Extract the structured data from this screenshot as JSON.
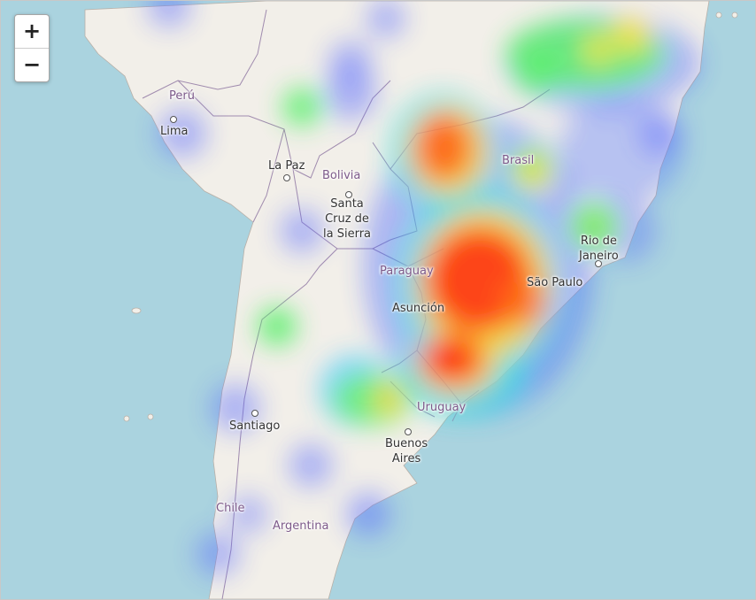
{
  "map": {
    "zoom_in_label": "+",
    "zoom_out_label": "−",
    "colors": {
      "water": "#aad3df",
      "land": "#f2efe9",
      "border": "#a08bae"
    },
    "labels": {
      "peru": "Perú",
      "lima": "Lima",
      "la_paz": "La Paz",
      "bolivia": "Bolivia",
      "santa_cruz": "Santa\nCruz de\nla Sierra",
      "brasil": "Brasil",
      "rio": "Rio de\nJaneiro",
      "paraguay": "Paraguay",
      "sao_paulo": "São Paulo",
      "asuncion": "Asunción",
      "santiago": "Santiago",
      "uruguay": "Uruguay",
      "buenos_aires": "Buenos\nAires",
      "chile": "Chile",
      "argentina": "Argentina"
    },
    "heat_gradient": [
      "blue",
      "cyan",
      "lime",
      "yellow",
      "red"
    ]
  }
}
